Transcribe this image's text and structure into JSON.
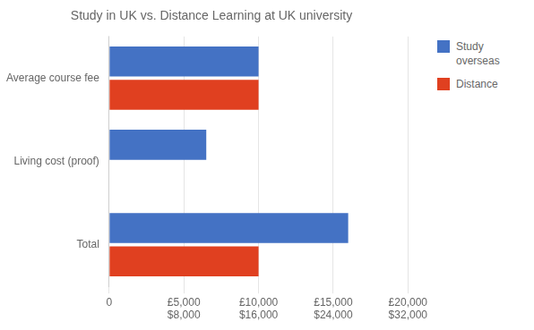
{
  "chart_data": {
    "type": "bar",
    "orientation": "horizontal",
    "title": "Study in UK vs. Distance Learning at UK university",
    "categories": [
      "Total",
      "Living cost (proof)",
      "Average course fee"
    ],
    "series": [
      {
        "name": "Study\noverseas",
        "color": "#4472C4",
        "values": [
          16000,
          6500,
          10000
        ]
      },
      {
        "name": "Distance",
        "color": "#E04020",
        "values": [
          10000,
          0,
          10000
        ]
      }
    ],
    "xlim": [
      0,
      20000
    ],
    "xticks": [
      0,
      {
        "value": 5000,
        "label": "£5,000"
      },
      {
        "value": 10000,
        "label": "£10,000"
      },
      {
        "value": 15000,
        "label": "£15,000"
      },
      {
        "value": 20000,
        "label": "£20,000"
      }
    ],
    "annotations": [
      {
        "x": 5000,
        "text": "$8,000"
      },
      {
        "x": 10000,
        "text": "$16,000"
      },
      {
        "x": 15000,
        "text": "$24,000"
      },
      {
        "x": 20000,
        "text": "$32,000"
      }
    ],
    "grid": true,
    "legend": "upper right"
  }
}
